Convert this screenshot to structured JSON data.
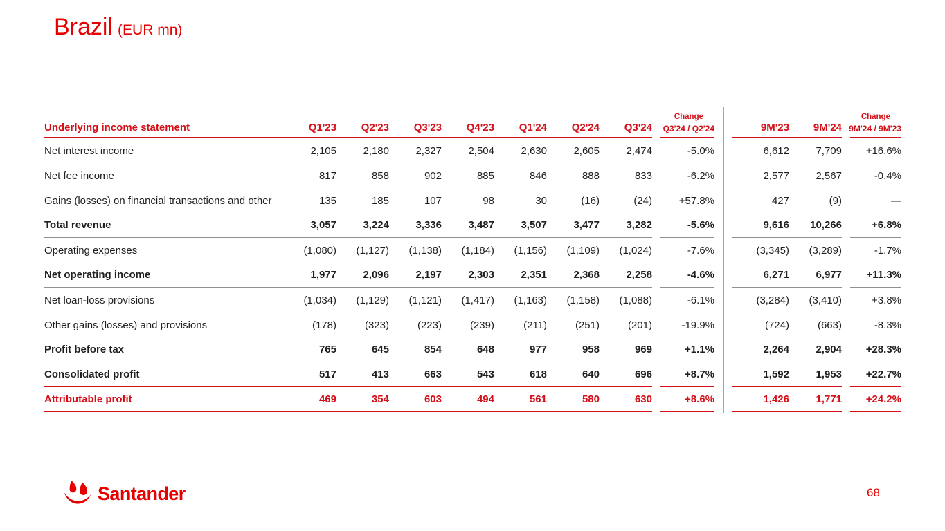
{
  "slide": {
    "title": "Brazil",
    "title_suffix": "(EUR mn)",
    "page_number": "68",
    "logo_text": "Santander"
  },
  "colors": {
    "brand_red": "#e60000",
    "table_red": "#d40f17",
    "text_dark": "#1f1f1f",
    "line_gray": "#8f8f8f",
    "divider_pink": "#d89494"
  },
  "table": {
    "header": {
      "label": "Underlying income statement",
      "quarter_cols": [
        "Q1'23",
        "Q2'23",
        "Q3'23",
        "Q4'23",
        "Q1'24",
        "Q2'24",
        "Q3'24"
      ],
      "change1": {
        "top": "Change",
        "bottom": "Q3'24 / Q2'24"
      },
      "period_cols": [
        "9M'23",
        "9M'24"
      ],
      "change2": {
        "top": "Change",
        "bottom": "9M'24 / 9M'23"
      }
    },
    "rows": [
      {
        "label": "Net interest income",
        "values": [
          "2,105",
          "2,180",
          "2,327",
          "2,504",
          "2,630",
          "2,605",
          "2,474"
        ],
        "change1": "-5.0%",
        "periods": [
          "6,612",
          "7,709"
        ],
        "change2": "+16.6%",
        "style": "normal",
        "underline": ""
      },
      {
        "label": "Net fee income",
        "values": [
          "817",
          "858",
          "902",
          "885",
          "846",
          "888",
          "833"
        ],
        "change1": "-6.2%",
        "periods": [
          "2,577",
          "2,567"
        ],
        "change2": "-0.4%",
        "style": "normal",
        "underline": ""
      },
      {
        "label": "Gains (losses) on financial transactions and other",
        "values": [
          "135",
          "185",
          "107",
          "98",
          "30",
          "(16)",
          "(24)"
        ],
        "change1": "+57.8%",
        "periods": [
          "427",
          "(9)"
        ],
        "change2": "—",
        "style": "normal",
        "underline": ""
      },
      {
        "label": "Total revenue",
        "values": [
          "3,057",
          "3,224",
          "3,336",
          "3,487",
          "3,507",
          "3,477",
          "3,282"
        ],
        "change1": "-5.6%",
        "periods": [
          "9,616",
          "10,266"
        ],
        "change2": "+6.8%",
        "style": "bold",
        "underline": "gray"
      },
      {
        "label": "Operating expenses",
        "values": [
          "(1,080)",
          "(1,127)",
          "(1,138)",
          "(1,184)",
          "(1,156)",
          "(1,109)",
          "(1,024)"
        ],
        "change1": "-7.6%",
        "periods": [
          "(3,345)",
          "(3,289)"
        ],
        "change2": "-1.7%",
        "style": "normal",
        "underline": ""
      },
      {
        "label": "Net operating income",
        "values": [
          "1,977",
          "2,096",
          "2,197",
          "2,303",
          "2,351",
          "2,368",
          "2,258"
        ],
        "change1": "-4.6%",
        "periods": [
          "6,271",
          "6,977"
        ],
        "change2": "+11.3%",
        "style": "bold",
        "underline": "gray"
      },
      {
        "label": "Net loan-loss provisions",
        "values": [
          "(1,034)",
          "(1,129)",
          "(1,121)",
          "(1,417)",
          "(1,163)",
          "(1,158)",
          "(1,088)"
        ],
        "change1": "-6.1%",
        "periods": [
          "(3,284)",
          "(3,410)"
        ],
        "change2": "+3.8%",
        "style": "normal",
        "underline": ""
      },
      {
        "label": "Other gains (losses) and provisions",
        "values": [
          "(178)",
          "(323)",
          "(223)",
          "(239)",
          "(211)",
          "(251)",
          "(201)"
        ],
        "change1": "-19.9%",
        "periods": [
          "(724)",
          "(663)"
        ],
        "change2": "-8.3%",
        "style": "normal",
        "underline": ""
      },
      {
        "label": "Profit before tax",
        "values": [
          "765",
          "645",
          "854",
          "648",
          "977",
          "958",
          "969"
        ],
        "change1": "+1.1%",
        "periods": [
          "2,264",
          "2,904"
        ],
        "change2": "+28.3%",
        "style": "bold",
        "underline": "gray"
      },
      {
        "label": "Consolidated profit",
        "values": [
          "517",
          "413",
          "663",
          "543",
          "618",
          "640",
          "696"
        ],
        "change1": "+8.7%",
        "periods": [
          "1,592",
          "1,953"
        ],
        "change2": "+22.7%",
        "style": "bold",
        "underline": "red"
      },
      {
        "label": "Attributable profit",
        "values": [
          "469",
          "354",
          "603",
          "494",
          "561",
          "580",
          "630"
        ],
        "change1": "+8.6%",
        "periods": [
          "1,426",
          "1,771"
        ],
        "change2": "+24.2%",
        "style": "bold-red",
        "underline": "red"
      }
    ]
  }
}
